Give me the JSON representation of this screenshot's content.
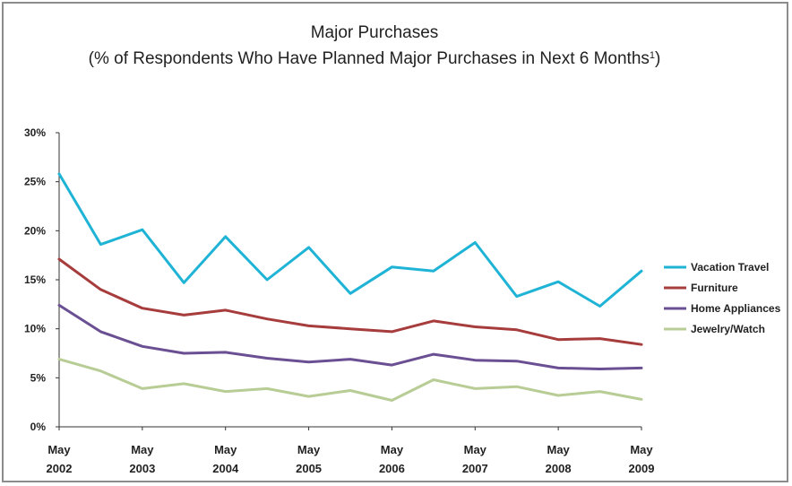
{
  "chart_data": {
    "type": "line",
    "title": "Major Purchases",
    "subtitle": "(% of Respondents Who Have Planned Major Purchases in Next 6 Months",
    "subtitle_footnote": "1",
    "subtitle_close": ")",
    "ylim": [
      0,
      30
    ],
    "y_ticks": [
      "0%",
      "5%",
      "10%",
      "15%",
      "20%",
      "25%",
      "30%"
    ],
    "x_tick_labels": [
      {
        "month": "May",
        "year": "2002"
      },
      {
        "month": "May",
        "year": "2003"
      },
      {
        "month": "May",
        "year": "2004"
      },
      {
        "month": "May",
        "year": "2005"
      },
      {
        "month": "May",
        "year": "2006"
      },
      {
        "month": "May",
        "year": "2007"
      },
      {
        "month": "May",
        "year": "2008"
      },
      {
        "month": "May",
        "year": "2009"
      }
    ],
    "grid": false,
    "legend_position": "right",
    "series": [
      {
        "name": "Vacation Travel",
        "color": "#1fb3d6",
        "values": [
          25.8,
          18.6,
          20.1,
          14.7,
          19.4,
          15.0,
          18.3,
          13.6,
          16.3,
          15.9,
          18.8,
          13.3,
          14.8,
          12.3,
          15.9
        ]
      },
      {
        "name": "Furniture",
        "color": "#a63c3c",
        "values": [
          17.1,
          14.0,
          12.1,
          11.4,
          11.9,
          11.0,
          10.3,
          10.0,
          9.7,
          10.8,
          10.2,
          9.9,
          8.9,
          9.0,
          8.4
        ]
      },
      {
        "name": "Home Appliances",
        "color": "#6a4f93",
        "values": [
          12.4,
          9.7,
          8.2,
          7.5,
          7.6,
          7.0,
          6.6,
          6.9,
          6.3,
          7.4,
          6.8,
          6.7,
          6.0,
          5.9,
          6.0
        ]
      },
      {
        "name": "Jewelry/Watch",
        "color": "#b8cc96",
        "values": [
          6.9,
          5.7,
          3.9,
          4.4,
          3.6,
          3.9,
          3.1,
          3.7,
          2.7,
          4.8,
          3.9,
          4.1,
          3.2,
          3.6,
          2.8
        ]
      }
    ]
  }
}
